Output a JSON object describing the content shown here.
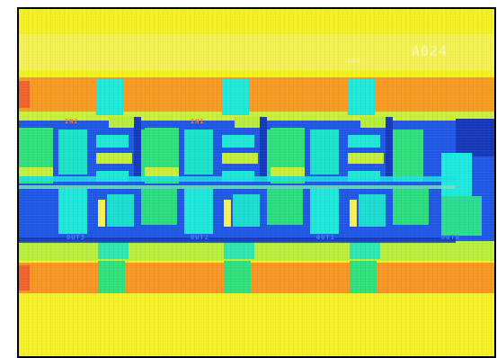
{
  "image": {
    "subject": "thermal-style false-color die photograph",
    "chip_id_label": "A024",
    "corner_mark": "IN0",
    "input_labels": [
      "IN2",
      "IN1"
    ],
    "output_labels": [
      "OUT3",
      "OUT2",
      "OUT1",
      "OUT0"
    ],
    "palette": {
      "yellow": "#f3f01f",
      "yellow_light": "#f6f36a",
      "orange": "#f79624",
      "orange_red": "#f4652a",
      "blue": "#1f57e4",
      "blue_dark": "#1438b8",
      "cyan": "#1ce8e0",
      "green": "#2fe07a",
      "lime": "#b8ef3a"
    }
  }
}
